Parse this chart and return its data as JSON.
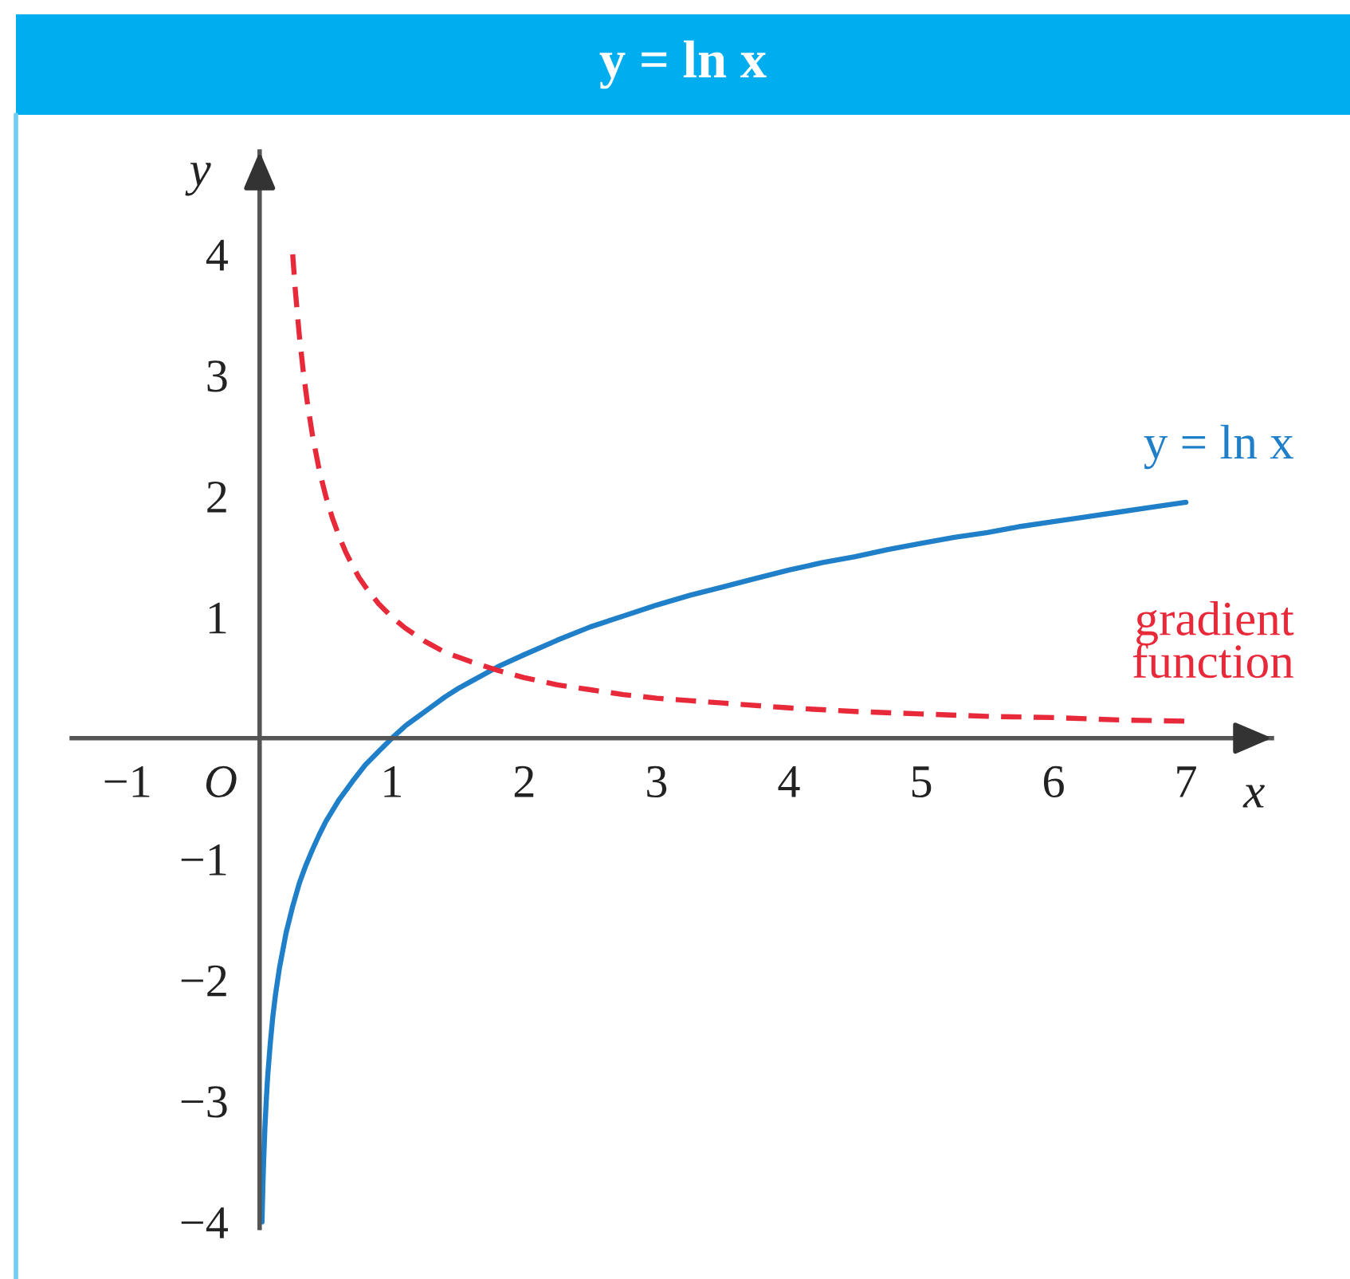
{
  "chart_data": {
    "type": "line",
    "title": "y = ln x",
    "xlabel": "x",
    "ylabel": "y",
    "xlim": [
      -1.42,
      7.65
    ],
    "ylim": [
      -4.05,
      4.85
    ],
    "xticks": [
      -1,
      1,
      2,
      3,
      4,
      5,
      6,
      7
    ],
    "yticks": [
      -4,
      -3,
      -2,
      -1,
      1,
      2,
      3,
      4
    ],
    "annotations": [
      "O"
    ],
    "series": [
      {
        "name": "y = ln x",
        "color": "#1f7fc8",
        "line_style": "solid",
        "x": [
          0.0183,
          0.02,
          0.025,
          0.03,
          0.04,
          0.05,
          0.06,
          0.08,
          0.1,
          0.12,
          0.15,
          0.2,
          0.25,
          0.3,
          0.35,
          0.4,
          0.45,
          0.5,
          0.6,
          0.7,
          0.8,
          0.9,
          1,
          1.1,
          1.2,
          1.3,
          1.4,
          1.5,
          1.6,
          1.8,
          2,
          2.25,
          2.5,
          2.75,
          3,
          3.25,
          3.5,
          3.75,
          4,
          4.25,
          4.5,
          4.75,
          5,
          5.25,
          5.5,
          5.75,
          6,
          6.25,
          6.5,
          6.75,
          7
        ],
        "values": [
          -4.0,
          -3.91,
          -3.69,
          -3.51,
          -3.22,
          -3.0,
          -2.81,
          -2.53,
          -2.3,
          -2.12,
          -1.9,
          -1.61,
          -1.39,
          -1.2,
          -1.05,
          -0.92,
          -0.8,
          -0.69,
          -0.51,
          -0.36,
          -0.22,
          -0.11,
          0,
          0.1,
          0.18,
          0.26,
          0.34,
          0.41,
          0.47,
          0.59,
          0.69,
          0.81,
          0.92,
          1.01,
          1.1,
          1.18,
          1.25,
          1.32,
          1.39,
          1.45,
          1.5,
          1.56,
          1.61,
          1.66,
          1.7,
          1.75,
          1.79,
          1.83,
          1.87,
          1.91,
          1.95
        ]
      },
      {
        "name": "gradient\nfunction",
        "color": "#e8293a",
        "line_style": "dashed",
        "x": [
          0.25,
          0.27,
          0.3,
          0.33,
          0.36,
          0.4,
          0.45,
          0.5,
          0.55,
          0.6,
          0.65,
          0.7,
          0.75,
          0.8,
          0.9,
          1,
          1.1,
          1.25,
          1.4,
          1.5,
          1.6,
          1.8,
          2,
          2.25,
          2.5,
          2.75,
          3,
          3.25,
          3.5,
          4,
          4.5,
          5,
          5.5,
          6,
          6.5,
          7
        ],
        "values": [
          4,
          3.7,
          3.33,
          3.03,
          2.78,
          2.5,
          2.22,
          2,
          1.82,
          1.67,
          1.54,
          1.43,
          1.33,
          1.25,
          1.11,
          1,
          0.91,
          0.8,
          0.71,
          0.67,
          0.63,
          0.56,
          0.5,
          0.44,
          0.4,
          0.36,
          0.33,
          0.31,
          0.29,
          0.25,
          0.22,
          0.2,
          0.18,
          0.17,
          0.15,
          0.14
        ]
      }
    ]
  }
}
